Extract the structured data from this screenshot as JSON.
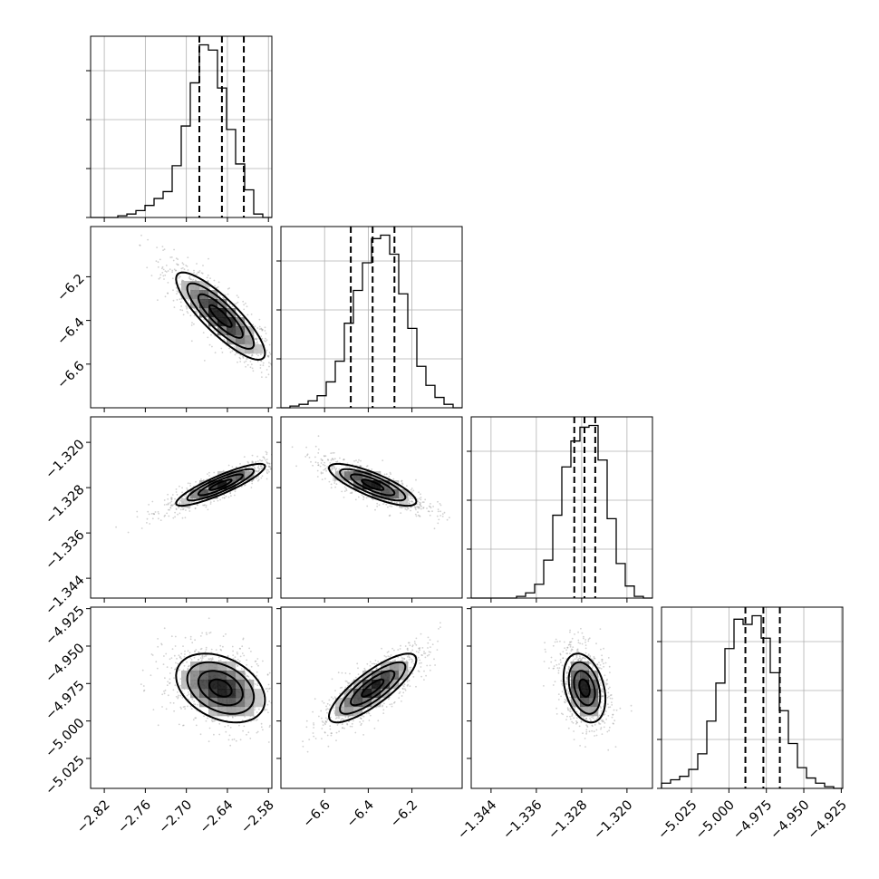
{
  "chart_data": {
    "type": "corner",
    "parameters": [
      {
        "index": 0,
        "range": [
          -2.84,
          -2.575
        ],
        "ticks": [
          -2.82,
          -2.76,
          -2.7,
          -2.64,
          -2.58
        ],
        "tick_labels": [
          "−2.82",
          "−2.76",
          "−2.70",
          "−2.64",
          "−2.58"
        ],
        "mean": -2.65,
        "quantiles": [
          -2.681,
          -2.648,
          -2.616
        ],
        "hist_counts": [
          0,
          0,
          0,
          1,
          2,
          4,
          7,
          11,
          15,
          30,
          53,
          78,
          100,
          97,
          75,
          51,
          31,
          16,
          2,
          0
        ]
      },
      {
        "index": 1,
        "range": [
          -6.8,
          -5.97
        ],
        "ticks": [
          -6.6,
          -6.4,
          -6.2
        ],
        "tick_labels": [
          "−6.6",
          "−6.4",
          "−6.2"
        ],
        "mean": -6.38,
        "quantiles": [
          -6.48,
          -6.38,
          -6.28
        ],
        "hist_counts": [
          0,
          1,
          2,
          4,
          7,
          15,
          27,
          49,
          68,
          84,
          98,
          100,
          89,
          66,
          46,
          24,
          13,
          6,
          2,
          0
        ]
      },
      {
        "index": 2,
        "range": [
          -1.3475,
          -1.3155
        ],
        "ticks": [
          -1.344,
          -1.336,
          -1.328,
          -1.32
        ],
        "tick_labels": [
          "−1.344",
          "−1.336",
          "−1.328",
          "−1.320"
        ],
        "mean": -1.3275,
        "quantiles": [
          -1.3293,
          -1.3275,
          -1.3256
        ],
        "hist_counts": [
          0,
          0,
          0,
          0,
          0,
          1,
          3,
          8,
          22,
          48,
          76,
          91,
          99,
          100,
          80,
          46,
          20,
          7,
          1,
          0
        ]
      },
      {
        "index": 3,
        "range": [
          -5.045,
          -4.924
        ],
        "ticks": [
          -5.025,
          -5.0,
          -4.975,
          -4.95,
          -4.925
        ],
        "tick_labels": [
          "−5.025",
          "−5.000",
          "−4.975",
          "−4.950",
          "−4.925"
        ],
        "mean": -4.978,
        "quantiles": [
          -4.989,
          -4.977,
          -4.966
        ],
        "hist_counts": [
          3,
          5,
          7,
          11,
          20,
          39,
          61,
          81,
          98,
          95,
          100,
          87,
          67,
          45,
          26,
          12,
          6,
          3,
          1,
          0
        ]
      }
    ],
    "correlations": [
      {
        "x": 0,
        "y": 1,
        "rho": -0.85
      },
      {
        "x": 0,
        "y": 2,
        "rho": 0.88
      },
      {
        "x": 1,
        "y": 2,
        "rho": -0.8
      },
      {
        "x": 0,
        "y": 3,
        "rho": -0.35
      },
      {
        "x": 1,
        "y": 3,
        "rho": 0.82
      },
      {
        "x": 2,
        "y": 3,
        "rho": -0.32
      }
    ],
    "grid": true,
    "legend": "none",
    "title": "",
    "xlabel": "",
    "ylabel": ""
  }
}
